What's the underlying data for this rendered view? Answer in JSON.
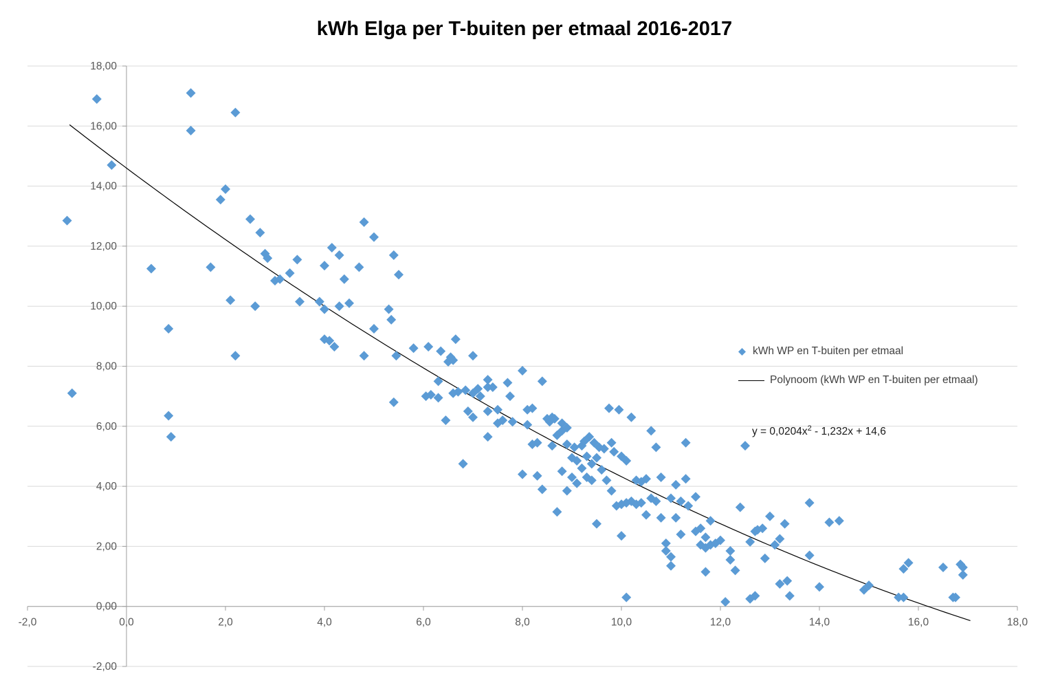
{
  "chart_data": {
    "type": "scatter",
    "title": "kWh Elga per T-buiten per etmaal 2016-2017",
    "xlabel": "",
    "ylabel": "",
    "grid": "horizontal",
    "colors": {
      "series": "#5B9BD5",
      "trendline": "#000000",
      "gridline": "#D9D9D9",
      "axis_line": "#9E9E9E",
      "axis_text": "#595959"
    },
    "x_axis": {
      "min": -2,
      "max": 18,
      "ticks": [
        {
          "value": -2,
          "label": "-2,0"
        },
        {
          "value": 0,
          "label": "0,0"
        },
        {
          "value": 2,
          "label": "2,0"
        },
        {
          "value": 4,
          "label": "4,0"
        },
        {
          "value": 6,
          "label": "6,0"
        },
        {
          "value": 8,
          "label": "8,0"
        },
        {
          "value": 10,
          "label": "10,0"
        },
        {
          "value": 12,
          "label": "12,0"
        },
        {
          "value": 14,
          "label": "14,0"
        },
        {
          "value": 16,
          "label": "16,0"
        },
        {
          "value": 18,
          "label": "18,0"
        }
      ]
    },
    "y_axis": {
      "min": -2,
      "max": 18,
      "ticks": [
        {
          "value": -2,
          "label": "-2,00"
        },
        {
          "value": 0,
          "label": "0,00"
        },
        {
          "value": 2,
          "label": "2,00"
        },
        {
          "value": 4,
          "label": "4,00"
        },
        {
          "value": 6,
          "label": "6,00"
        },
        {
          "value": 8,
          "label": "8,00"
        },
        {
          "value": 10,
          "label": "10,00"
        },
        {
          "value": 12,
          "label": "12,00"
        },
        {
          "value": 14,
          "label": "14,00"
        },
        {
          "value": 16,
          "label": "16,00"
        },
        {
          "value": 18,
          "label": "18,00"
        }
      ]
    },
    "legend": {
      "position": "right",
      "entries": [
        {
          "label": "kWh WP en T-buiten per etmaal",
          "marker": "diamond"
        },
        {
          "label": "Polynoom  (kWh WP en T-buiten per etmaal)",
          "marker": "line"
        }
      ]
    },
    "equation": {
      "text": "y = 0,0204x² - 1,232x + 14,6",
      "prefix": "y = 0,0204x",
      "sup": "2",
      "suffix": " - 1,232x + 14,6"
    },
    "trendline": {
      "name": "Polynoom  (kWh WP en T-buiten per etmaal)",
      "type": "polynomial",
      "order": 2,
      "coefficients": {
        "a": 0.0204,
        "b": -1.232,
        "c": 14.6
      },
      "x_start": -1.15,
      "x_end": 17.05,
      "color": "#000000"
    },
    "series": [
      {
        "name": "kWh WP en T-buiten per etmaal",
        "marker": "diamond",
        "color": "#5B9BD5",
        "points": [
          [
            -1.2,
            12.85
          ],
          [
            -1.1,
            7.1
          ],
          [
            -0.6,
            16.9
          ],
          [
            -0.3,
            14.7
          ],
          [
            0.5,
            11.25
          ],
          [
            0.85,
            9.25
          ],
          [
            0.85,
            6.35
          ],
          [
            0.9,
            5.65
          ],
          [
            1.3,
            17.1
          ],
          [
            1.3,
            15.85
          ],
          [
            1.7,
            11.3
          ],
          [
            1.9,
            13.55
          ],
          [
            2.0,
            13.9
          ],
          [
            2.1,
            10.2
          ],
          [
            2.2,
            16.45
          ],
          [
            2.2,
            8.35
          ],
          [
            2.5,
            12.9
          ],
          [
            2.6,
            10.0
          ],
          [
            2.7,
            12.45
          ],
          [
            2.8,
            11.75
          ],
          [
            2.85,
            11.6
          ],
          [
            3.0,
            10.85
          ],
          [
            3.1,
            10.9
          ],
          [
            3.3,
            11.1
          ],
          [
            3.45,
            11.55
          ],
          [
            3.5,
            10.15
          ],
          [
            3.9,
            10.15
          ],
          [
            4.0,
            11.35
          ],
          [
            4.0,
            9.9
          ],
          [
            4.0,
            8.9
          ],
          [
            4.1,
            8.85
          ],
          [
            4.15,
            11.95
          ],
          [
            4.2,
            8.65
          ],
          [
            4.3,
            11.7
          ],
          [
            4.3,
            10.0
          ],
          [
            4.4,
            10.9
          ],
          [
            4.5,
            10.1
          ],
          [
            4.7,
            11.3
          ],
          [
            4.8,
            12.8
          ],
          [
            4.8,
            8.35
          ],
          [
            5.0,
            12.3
          ],
          [
            5.0,
            9.25
          ],
          [
            5.3,
            9.9
          ],
          [
            5.4,
            11.7
          ],
          [
            5.35,
            9.55
          ],
          [
            5.5,
            11.05
          ],
          [
            5.45,
            8.35
          ],
          [
            5.4,
            6.8
          ],
          [
            5.8,
            8.6
          ],
          [
            6.1,
            8.65
          ],
          [
            6.05,
            7.0
          ],
          [
            6.15,
            7.05
          ],
          [
            6.3,
            7.5
          ],
          [
            6.3,
            6.95
          ],
          [
            6.35,
            8.5
          ],
          [
            6.45,
            6.2
          ],
          [
            6.5,
            8.15
          ],
          [
            6.55,
            8.3
          ],
          [
            6.6,
            8.2
          ],
          [
            6.6,
            7.1
          ],
          [
            6.65,
            8.9
          ],
          [
            6.7,
            7.15
          ],
          [
            6.8,
            4.75
          ],
          [
            6.85,
            7.2
          ],
          [
            6.9,
            6.5
          ],
          [
            7.0,
            8.35
          ],
          [
            7.0,
            7.1
          ],
          [
            7.0,
            6.3
          ],
          [
            7.1,
            7.25
          ],
          [
            7.15,
            7.0
          ],
          [
            7.3,
            7.55
          ],
          [
            7.3,
            7.3
          ],
          [
            7.3,
            6.5
          ],
          [
            7.3,
            5.65
          ],
          [
            7.4,
            7.3
          ],
          [
            7.5,
            6.55
          ],
          [
            7.5,
            6.1
          ],
          [
            7.6,
            6.2
          ],
          [
            7.7,
            7.45
          ],
          [
            7.75,
            7.0
          ],
          [
            7.8,
            6.15
          ],
          [
            8.0,
            7.85
          ],
          [
            8.0,
            4.4
          ],
          [
            8.1,
            6.55
          ],
          [
            8.1,
            6.05
          ],
          [
            8.2,
            6.6
          ],
          [
            8.2,
            5.4
          ],
          [
            8.3,
            5.45
          ],
          [
            8.3,
            4.35
          ],
          [
            8.4,
            7.5
          ],
          [
            8.4,
            3.9
          ],
          [
            8.5,
            6.25
          ],
          [
            8.55,
            6.15
          ],
          [
            8.6,
            6.3
          ],
          [
            8.6,
            5.35
          ],
          [
            8.65,
            6.25
          ],
          [
            8.7,
            5.7
          ],
          [
            8.7,
            3.15
          ],
          [
            8.8,
            6.1
          ],
          [
            8.8,
            5.85
          ],
          [
            8.8,
            4.5
          ],
          [
            8.9,
            5.95
          ],
          [
            8.9,
            5.4
          ],
          [
            8.9,
            3.85
          ],
          [
            9.0,
            4.95
          ],
          [
            9.0,
            4.3
          ],
          [
            9.05,
            5.3
          ],
          [
            9.1,
            4.85
          ],
          [
            9.1,
            4.1
          ],
          [
            9.2,
            5.35
          ],
          [
            9.2,
            4.6
          ],
          [
            9.25,
            5.5
          ],
          [
            9.3,
            5.0
          ],
          [
            9.3,
            4.3
          ],
          [
            9.35,
            5.65
          ],
          [
            9.4,
            4.75
          ],
          [
            9.4,
            4.2
          ],
          [
            9.45,
            5.45
          ],
          [
            9.5,
            4.95
          ],
          [
            9.5,
            2.75
          ],
          [
            9.55,
            5.3
          ],
          [
            9.6,
            4.55
          ],
          [
            9.65,
            5.25
          ],
          [
            9.7,
            4.2
          ],
          [
            9.75,
            6.6
          ],
          [
            9.8,
            5.45
          ],
          [
            9.8,
            3.85
          ],
          [
            9.85,
            5.15
          ],
          [
            9.9,
            3.35
          ],
          [
            9.95,
            6.55
          ],
          [
            10.0,
            5.0
          ],
          [
            10.0,
            3.4
          ],
          [
            10.0,
            2.35
          ],
          [
            10.1,
            4.85
          ],
          [
            10.1,
            3.45
          ],
          [
            10.1,
            0.3
          ],
          [
            10.2,
            6.3
          ],
          [
            10.2,
            3.5
          ],
          [
            10.3,
            4.2
          ],
          [
            10.3,
            3.4
          ],
          [
            10.4,
            4.15
          ],
          [
            10.4,
            3.45
          ],
          [
            10.5,
            4.25
          ],
          [
            10.5,
            3.05
          ],
          [
            10.6,
            5.85
          ],
          [
            10.6,
            3.6
          ],
          [
            10.7,
            5.3
          ],
          [
            10.7,
            3.5
          ],
          [
            10.8,
            4.3
          ],
          [
            10.8,
            2.95
          ],
          [
            10.9,
            2.1
          ],
          [
            10.9,
            1.85
          ],
          [
            11.0,
            3.6
          ],
          [
            11.0,
            1.65
          ],
          [
            11.0,
            1.35
          ],
          [
            11.1,
            4.05
          ],
          [
            11.1,
            2.95
          ],
          [
            11.2,
            3.5
          ],
          [
            11.2,
            2.4
          ],
          [
            11.3,
            5.45
          ],
          [
            11.3,
            4.25
          ],
          [
            11.35,
            3.35
          ],
          [
            11.5,
            3.65
          ],
          [
            11.5,
            2.5
          ],
          [
            11.6,
            2.6
          ],
          [
            11.6,
            2.05
          ],
          [
            11.7,
            2.3
          ],
          [
            11.7,
            1.95
          ],
          [
            11.7,
            1.15
          ],
          [
            11.8,
            2.85
          ],
          [
            11.8,
            2.05
          ],
          [
            11.9,
            2.1
          ],
          [
            12.0,
            2.2
          ],
          [
            12.1,
            0.15
          ],
          [
            12.2,
            1.85
          ],
          [
            12.2,
            1.55
          ],
          [
            12.3,
            1.2
          ],
          [
            12.4,
            3.3
          ],
          [
            12.5,
            5.35
          ],
          [
            12.6,
            2.15
          ],
          [
            12.6,
            0.25
          ],
          [
            12.7,
            2.5
          ],
          [
            12.7,
            0.35
          ],
          [
            12.75,
            2.55
          ],
          [
            12.85,
            2.6
          ],
          [
            12.9,
            1.6
          ],
          [
            13.0,
            3.0
          ],
          [
            13.1,
            2.05
          ],
          [
            13.2,
            2.25
          ],
          [
            13.2,
            0.75
          ],
          [
            13.3,
            2.75
          ],
          [
            13.35,
            0.85
          ],
          [
            13.4,
            0.35
          ],
          [
            13.8,
            3.45
          ],
          [
            13.8,
            1.7
          ],
          [
            14.0,
            0.65
          ],
          [
            14.2,
            2.8
          ],
          [
            14.4,
            2.85
          ],
          [
            14.9,
            0.55
          ],
          [
            15.0,
            0.7
          ],
          [
            15.6,
            0.3
          ],
          [
            15.7,
            1.25
          ],
          [
            15.7,
            0.3
          ],
          [
            15.8,
            1.45
          ],
          [
            16.5,
            1.3
          ],
          [
            16.7,
            0.3
          ],
          [
            16.75,
            0.3
          ],
          [
            16.85,
            1.4
          ],
          [
            16.9,
            1.3
          ],
          [
            16.9,
            1.05
          ]
        ]
      }
    ]
  }
}
